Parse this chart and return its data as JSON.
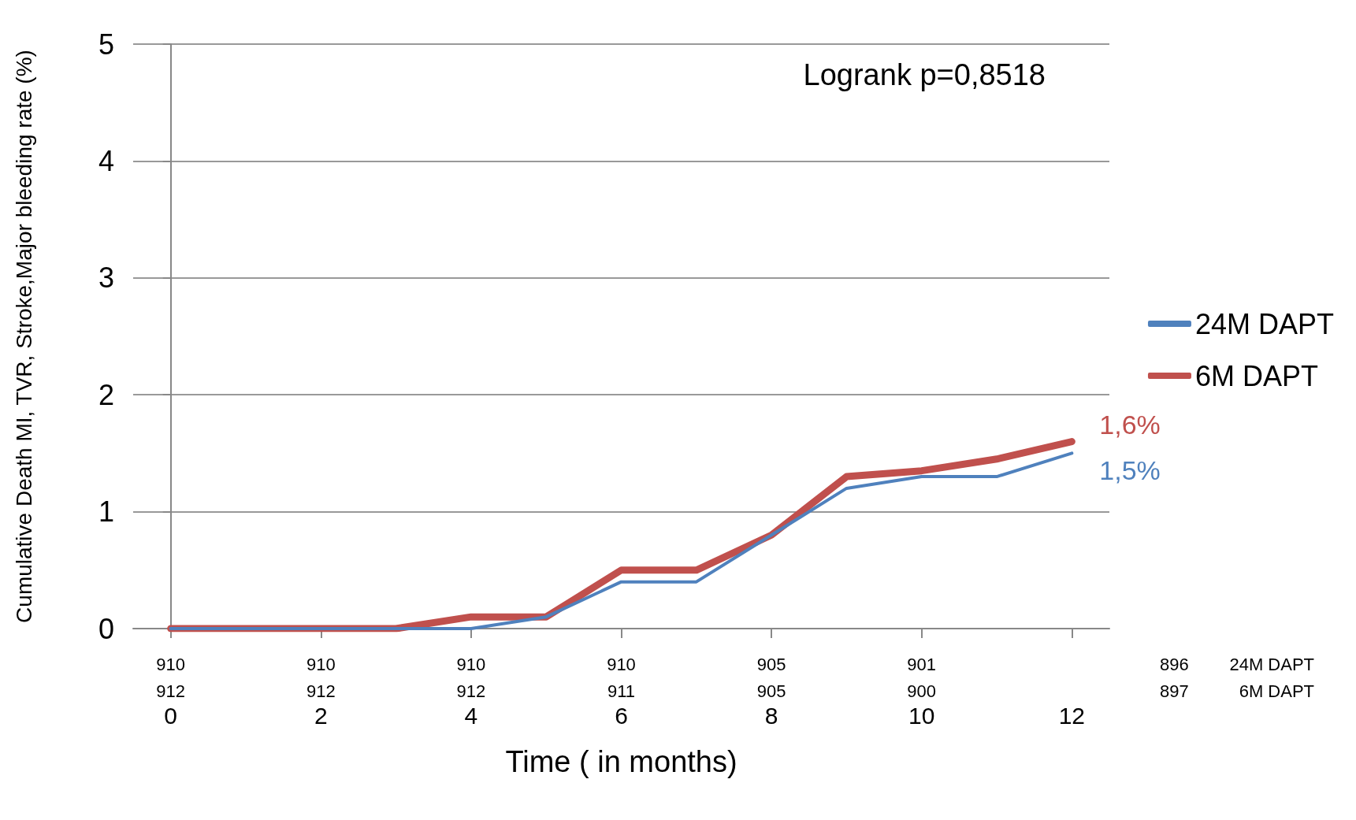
{
  "chart_data": {
    "type": "line",
    "xlabel": "Time ( in months)",
    "ylabel": "Cumulative Death MI, TVR, Stroke,Major bleeding rate (%)",
    "x": [
      0,
      1,
      2,
      3,
      4,
      5,
      6,
      7,
      8,
      9,
      10,
      11,
      12
    ],
    "series": [
      {
        "name": "24M DAPT",
        "color": "#4f81bd",
        "values": [
          0,
          0,
          0,
          0,
          0,
          0.1,
          0.4,
          0.4,
          0.8,
          1.2,
          1.3,
          1.3,
          1.5
        ],
        "value_labels": [
          null,
          null,
          null,
          null,
          null,
          null,
          null,
          null,
          null,
          null,
          null,
          null,
          "1,5%"
        ]
      },
      {
        "name": "6M DAPT",
        "color": "#c0504d",
        "values": [
          0,
          0,
          0,
          0,
          0.1,
          0.1,
          0.5,
          0.5,
          0.8,
          1.3,
          1.35,
          1.45,
          1.6
        ],
        "value_labels": [
          null,
          null,
          null,
          null,
          null,
          null,
          null,
          null,
          null,
          null,
          null,
          null,
          "1,6%"
        ]
      }
    ],
    "xlim": [
      -0.5,
      12.5
    ],
    "xticks": [
      0,
      2,
      4,
      6,
      8,
      10,
      12
    ],
    "ylim": [
      0,
      5
    ],
    "yticks": [
      0,
      1,
      2,
      3,
      4,
      5
    ],
    "grid": "y",
    "legend": "right",
    "marker": "none",
    "line_style": "solid",
    "annotations": [
      "Logrank p=0,8518",
      "910",
      "910",
      "910",
      "910",
      "905",
      "901",
      "896",
      "24M DAPT",
      "912",
      "912",
      "912",
      "911",
      "905",
      "900",
      "897",
      "6M DAPT"
    ]
  }
}
